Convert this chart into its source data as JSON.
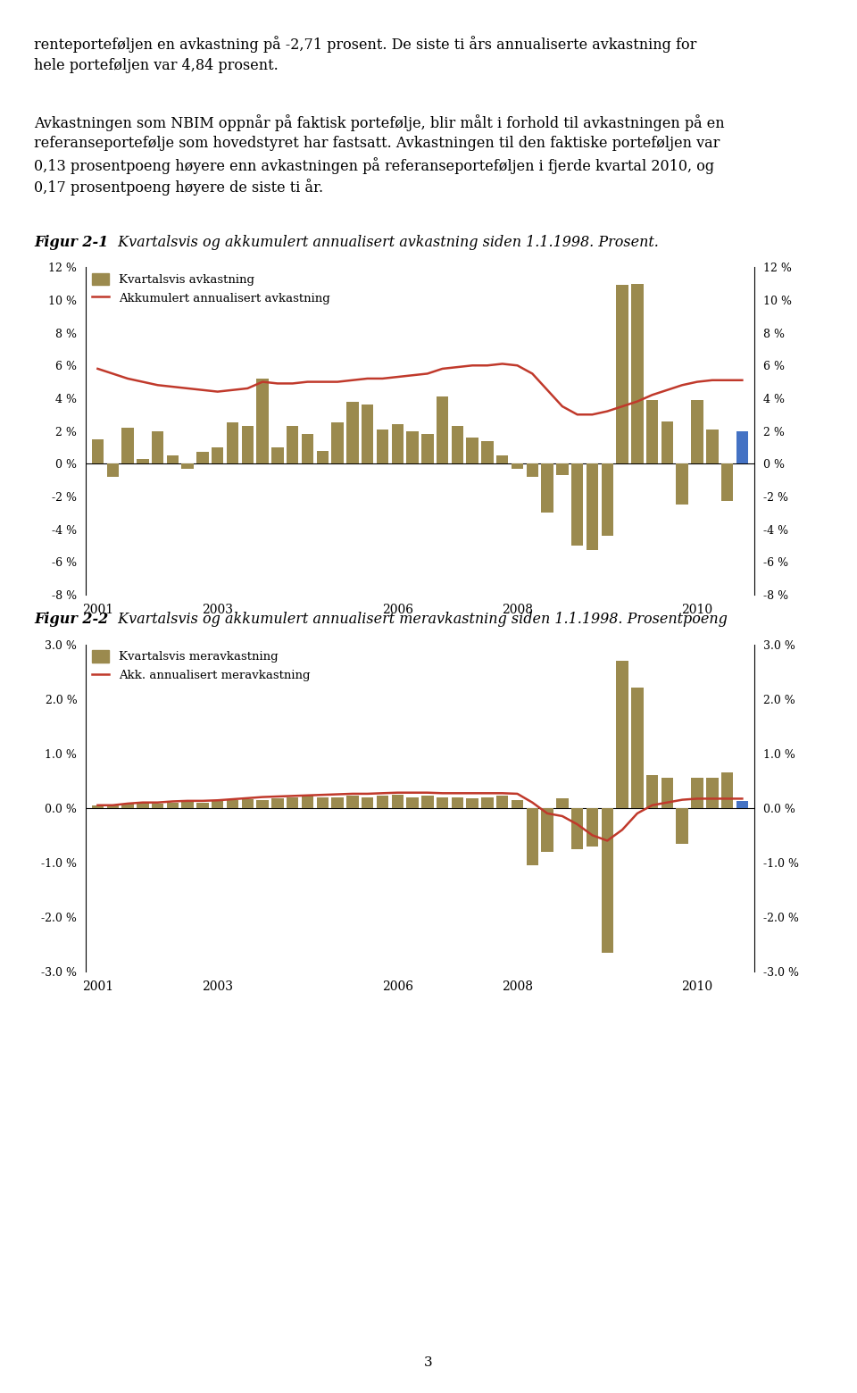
{
  "bar_color": "#9B8A4E",
  "bar_color_last": "#4472C4",
  "line_color": "#C0392B",
  "fig1_bars": [
    1.5,
    -0.8,
    2.2,
    0.3,
    2.0,
    0.5,
    -0.3,
    0.7,
    1.0,
    2.5,
    2.3,
    5.2,
    1.0,
    2.3,
    1.8,
    0.8,
    2.5,
    3.8,
    3.6,
    2.1,
    2.4,
    2.0,
    1.8,
    4.1,
    2.3,
    1.6,
    1.4,
    0.5,
    -0.3,
    -0.8,
    -3.0,
    -0.7,
    -5.0,
    -5.3,
    -4.4,
    10.9,
    11.0,
    3.9,
    2.6,
    -2.5,
    3.9,
    2.1,
    -2.3,
    2.0
  ],
  "fig1_line": [
    5.8,
    5.5,
    5.2,
    5.0,
    4.8,
    4.7,
    4.6,
    4.5,
    4.4,
    4.5,
    4.6,
    5.0,
    4.9,
    4.9,
    5.0,
    5.0,
    5.0,
    5.1,
    5.2,
    5.2,
    5.3,
    5.4,
    5.5,
    5.8,
    5.9,
    6.0,
    6.0,
    6.1,
    6.0,
    5.5,
    4.5,
    3.5,
    3.0,
    3.0,
    3.2,
    3.5,
    3.8,
    4.2,
    4.5,
    4.8,
    5.0,
    5.1,
    5.1,
    5.1
  ],
  "fig2_bars": [
    0.05,
    0.05,
    0.08,
    0.1,
    0.08,
    0.1,
    0.12,
    0.1,
    0.12,
    0.14,
    0.16,
    0.15,
    0.18,
    0.2,
    0.22,
    0.2,
    0.2,
    0.22,
    0.2,
    0.22,
    0.25,
    0.2,
    0.22,
    0.2,
    0.2,
    0.18,
    0.2,
    0.22,
    0.15,
    -1.05,
    -0.8,
    0.18,
    -0.75,
    -0.7,
    -2.65,
    2.7,
    2.2,
    0.6,
    0.55,
    -0.65,
    0.55,
    0.55,
    0.65,
    0.13
  ],
  "fig2_line": [
    0.05,
    0.05,
    0.08,
    0.1,
    0.1,
    0.12,
    0.13,
    0.13,
    0.14,
    0.16,
    0.18,
    0.2,
    0.21,
    0.22,
    0.23,
    0.24,
    0.25,
    0.26,
    0.26,
    0.27,
    0.28,
    0.28,
    0.28,
    0.27,
    0.27,
    0.27,
    0.27,
    0.27,
    0.26,
    0.1,
    -0.1,
    -0.15,
    -0.3,
    -0.5,
    -0.6,
    -0.4,
    -0.1,
    0.05,
    0.1,
    0.15,
    0.17,
    0.17,
    0.17,
    0.17
  ],
  "fig1_ylim": [
    -8,
    12
  ],
  "fig1_yticks": [
    -8,
    -6,
    -4,
    -2,
    0,
    2,
    4,
    6,
    8,
    10,
    12
  ],
  "fig2_ylim": [
    -3.0,
    3.0
  ],
  "fig2_yticks": [
    -3.0,
    -2.0,
    -1.0,
    0.0,
    1.0,
    2.0,
    3.0
  ],
  "xtick_positions": [
    0,
    8,
    20,
    28,
    40
  ],
  "xtick_labels": [
    "2001",
    "2003",
    "2006",
    "2008",
    "2010"
  ],
  "legend1_bar": "Kvartalsvis avkastning",
  "legend1_line": "Akkumulert annualisert avkastning",
  "legend2_bar": "Kvartalsvis meravkastning",
  "legend2_line": "Akk. annualisert meravkastning",
  "fig1_caption_bold": "Figur 2-1",
  "fig1_caption_rest": " Kvartalsvis og akkumulert annualisert avkastning siden 1.1.1998. Prosent.",
  "fig2_caption_bold": "Figur 2-2",
  "fig2_caption_rest": " Kvartalsvis og akkumulert annualisert meravkastning siden 1.1.1998. Prosentpoeng",
  "page_number": "3",
  "background_color": "#FFFFFF",
  "text1_line1": "renteporteføljen en avkastning på -2,71 prosent. De siste ti års annualiserte avkastning for",
  "text1_line2": "hele porteføljen var 4,84 prosent.",
  "text2_line1": "Avkastningen som NBIM oppnår på faktisk portefølje, blir målt i forhold til avkastningen på en",
  "text2_line2": "referanseportefølje som hovedstyret har fastsatt. Avkastningen til den faktiske porteføljen var",
  "text2_line3": "0,13 prosentpoeng høyere enn avkastningen på referanseporteføljen i fjerde kvartal 2010, og",
  "text2_line4": "0,17 prosentpoeng høyere de siste ti år."
}
